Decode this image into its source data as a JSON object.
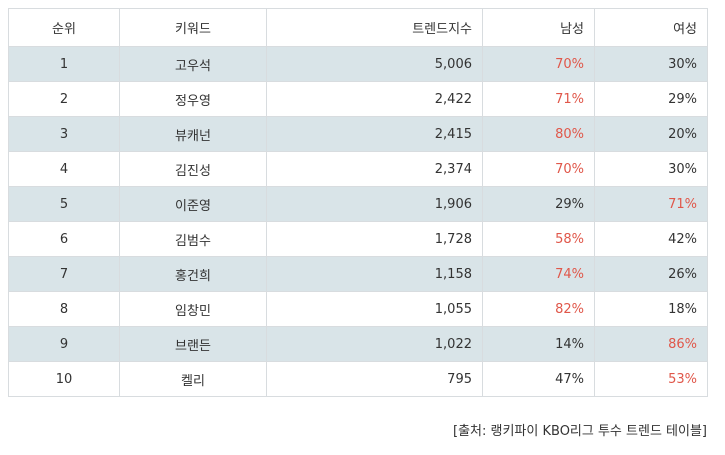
{
  "table": {
    "headers": {
      "rank": "순위",
      "keyword": "키워드",
      "trend": "트렌드지수",
      "male": "남성",
      "female": "여성"
    },
    "rows": [
      {
        "rank": "1",
        "keyword": "고우석",
        "trend": "5,006",
        "male": "70%",
        "female": "30%",
        "highlight": "male"
      },
      {
        "rank": "2",
        "keyword": "정우영",
        "trend": "2,422",
        "male": "71%",
        "female": "29%",
        "highlight": "male"
      },
      {
        "rank": "3",
        "keyword": "뷰캐넌",
        "trend": "2,415",
        "male": "80%",
        "female": "20%",
        "highlight": "male"
      },
      {
        "rank": "4",
        "keyword": "김진성",
        "trend": "2,374",
        "male": "70%",
        "female": "30%",
        "highlight": "male"
      },
      {
        "rank": "5",
        "keyword": "이준영",
        "trend": "1,906",
        "male": "29%",
        "female": "71%",
        "highlight": "female"
      },
      {
        "rank": "6",
        "keyword": "김범수",
        "trend": "1,728",
        "male": "58%",
        "female": "42%",
        "highlight": "male"
      },
      {
        "rank": "7",
        "keyword": "홍건희",
        "trend": "1,158",
        "male": "74%",
        "female": "26%",
        "highlight": "male"
      },
      {
        "rank": "8",
        "keyword": "임창민",
        "trend": "1,055",
        "male": "82%",
        "female": "18%",
        "highlight": "male"
      },
      {
        "rank": "9",
        "keyword": "브랜든",
        "trend": "1,022",
        "male": "14%",
        "female": "86%",
        "highlight": "female"
      },
      {
        "rank": "10",
        "keyword": "켈리",
        "trend": "795",
        "male": "47%",
        "female": "53%",
        "highlight": "female"
      }
    ]
  },
  "colors": {
    "highlight": "#e0574a",
    "stripe": "#d9e4e8"
  },
  "source": "[출처: 랭키파이 KBO리그 투수 트렌드 테이블]"
}
